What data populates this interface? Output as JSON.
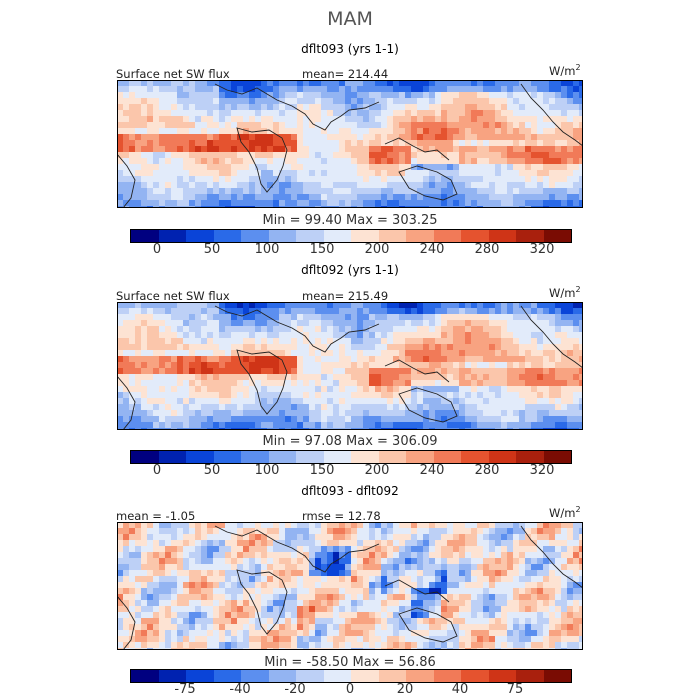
{
  "season": "MAM",
  "unit": "W/m",
  "unit_exp": "2",
  "panels": [
    {
      "title": "dflt093 (yrs 1-1)",
      "left_label": "Surface net SW flux",
      "right_label": "mean= 214.44",
      "stats": "Min =  99.40  Max =  303.25",
      "ticks": [
        "0",
        "50",
        "100",
        "150",
        "200",
        "240",
        "280",
        "320"
      ]
    },
    {
      "title": "dflt092 (yrs 1-1)",
      "left_label": "Surface net SW flux",
      "right_label": "mean= 215.49",
      "stats": "Min =  97.08  Max =  306.09",
      "ticks": [
        "0",
        "50",
        "100",
        "150",
        "200",
        "240",
        "280",
        "320"
      ]
    },
    {
      "title": "dflt093 - dflt092",
      "left_label": "mean =  -1.05",
      "right_label": "rmse =  12.78",
      "stats": "Min = -58.50  Max =  56.86",
      "ticks": [
        "-75",
        "-40",
        "-20",
        "0",
        "20",
        "40",
        "75"
      ]
    }
  ],
  "colors": {
    "scale": [
      "#000080",
      "#0022b0",
      "#0a44d8",
      "#2a6ae8",
      "#5c8fef",
      "#93b4f2",
      "#bdd0f6",
      "#e2ebfa",
      "#fde3d3",
      "#fbc6ab",
      "#f8a381",
      "#f17a58",
      "#e5532f",
      "#cf3417",
      "#a9200d",
      "#7a0c03"
    ]
  }
}
